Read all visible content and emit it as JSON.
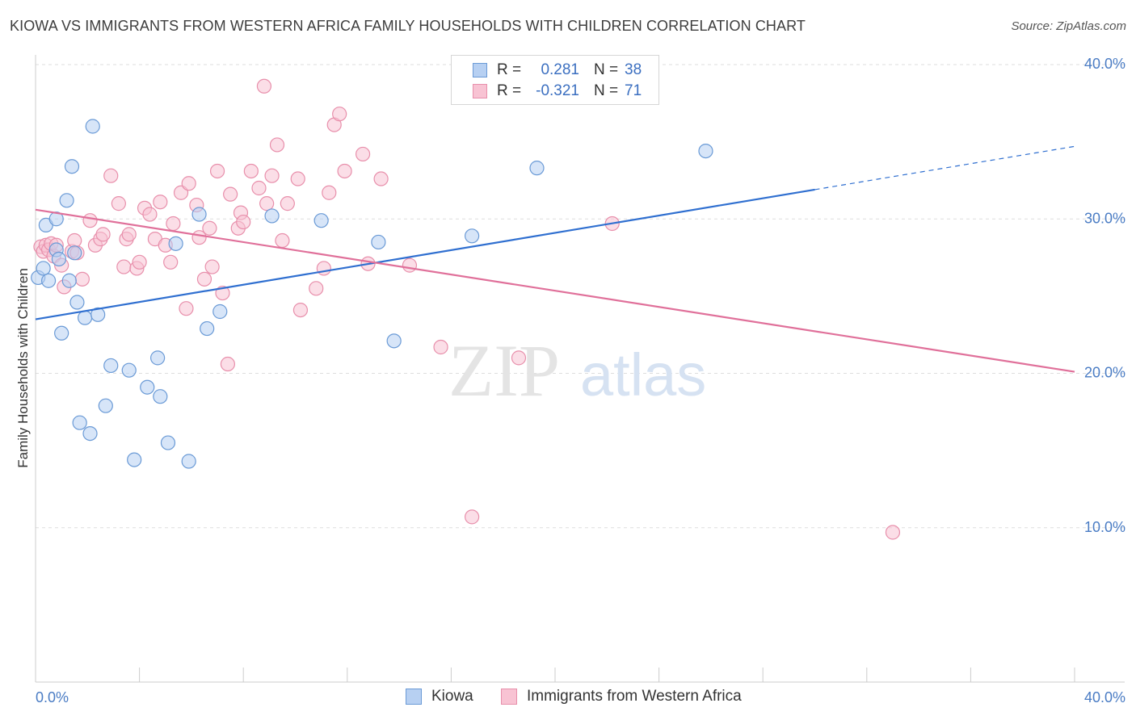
{
  "header": {
    "title": "KIOWA VS IMMIGRANTS FROM WESTERN AFRICA FAMILY HOUSEHOLDS WITH CHILDREN CORRELATION CHART",
    "source": "Source: ZipAtlas.com"
  },
  "watermark": {
    "zip": "ZIP",
    "atlas": "atlas"
  },
  "legend": {
    "rows": [
      {
        "r_key": "R =",
        "r_value": "0.281",
        "n_key": "N =",
        "n_value": "38"
      },
      {
        "r_key": "R =",
        "r_value": "-0.321",
        "n_key": "N =",
        "n_value": "71"
      }
    ]
  },
  "bottom_legend": {
    "items": [
      "Kiowa",
      "Immigrants from Western Africa"
    ]
  },
  "colors": {
    "kiowa_fill": "#b7d0f2",
    "kiowa_stroke": "#6a9ad6",
    "kiowa_line": "#2f6fd0",
    "waf_fill": "#f8c3d3",
    "waf_stroke": "#e88fab",
    "waf_line": "#e0709a",
    "tick": "#4a7cc4",
    "grid": "#dddddd"
  },
  "chart_data": {
    "type": "scatter",
    "title": "KIOWA VS IMMIGRANTS FROM WESTERN AFRICA FAMILY HOUSEHOLDS WITH CHILDREN CORRELATION CHART",
    "xlabel": "",
    "ylabel": "Family Households with Children",
    "xlim": [
      0,
      40
    ],
    "ylim": [
      0,
      40
    ],
    "x_tick_labels": [
      "0.0%",
      "40.0%"
    ],
    "y_ticks": [
      10,
      20,
      30,
      40
    ],
    "y_tick_labels": [
      "10.0%",
      "20.0%",
      "30.0%",
      "40.0%"
    ],
    "grid": true,
    "legend_position": "top-center",
    "series": [
      {
        "name": "Kiowa",
        "r": 0.281,
        "n": 38,
        "trend": {
          "x0": 0,
          "y0": 23.5,
          "x1": 30,
          "y1": 31.9,
          "dashed_to_x": 40,
          "dashed_to_y": 34.7
        },
        "points": [
          [
            0.1,
            26.2
          ],
          [
            0.3,
            26.8
          ],
          [
            0.4,
            29.6
          ],
          [
            0.5,
            26.0
          ],
          [
            0.8,
            28.0
          ],
          [
            0.8,
            30.0
          ],
          [
            0.9,
            27.4
          ],
          [
            1.0,
            22.6
          ],
          [
            1.2,
            31.2
          ],
          [
            1.3,
            26.0
          ],
          [
            1.4,
            33.4
          ],
          [
            1.5,
            27.8
          ],
          [
            1.6,
            24.6
          ],
          [
            1.7,
            16.8
          ],
          [
            1.9,
            23.6
          ],
          [
            2.1,
            16.1
          ],
          [
            2.2,
            36.0
          ],
          [
            2.4,
            23.8
          ],
          [
            2.7,
            17.9
          ],
          [
            2.9,
            20.5
          ],
          [
            3.6,
            20.2
          ],
          [
            3.8,
            14.4
          ],
          [
            4.3,
            19.1
          ],
          [
            4.7,
            21.0
          ],
          [
            4.8,
            18.5
          ],
          [
            5.1,
            15.5
          ],
          [
            5.4,
            28.4
          ],
          [
            5.9,
            14.3
          ],
          [
            6.3,
            30.3
          ],
          [
            6.6,
            22.9
          ],
          [
            7.1,
            24.0
          ],
          [
            9.1,
            30.2
          ],
          [
            11.0,
            29.9
          ],
          [
            13.2,
            28.5
          ],
          [
            13.8,
            22.1
          ],
          [
            16.8,
            28.9
          ],
          [
            19.3,
            33.3
          ],
          [
            25.8,
            34.4
          ]
        ]
      },
      {
        "name": "Immigrants from Western Africa",
        "r": -0.321,
        "n": 71,
        "trend": {
          "x0": 0,
          "y0": 30.6,
          "x1": 40,
          "y1": 20.1
        },
        "points": [
          [
            0.2,
            28.2
          ],
          [
            0.3,
            27.9
          ],
          [
            0.4,
            28.3
          ],
          [
            0.5,
            28.0
          ],
          [
            0.6,
            28.4
          ],
          [
            0.7,
            27.6
          ],
          [
            0.8,
            28.3
          ],
          [
            1.0,
            27.0
          ],
          [
            1.1,
            25.6
          ],
          [
            1.4,
            27.9
          ],
          [
            1.5,
            28.6
          ],
          [
            1.6,
            27.8
          ],
          [
            1.8,
            26.1
          ],
          [
            2.1,
            29.9
          ],
          [
            2.3,
            28.3
          ],
          [
            2.5,
            28.7
          ],
          [
            2.6,
            29.0
          ],
          [
            2.9,
            32.8
          ],
          [
            3.2,
            31.0
          ],
          [
            3.4,
            26.9
          ],
          [
            3.5,
            28.7
          ],
          [
            3.6,
            29.0
          ],
          [
            3.9,
            26.8
          ],
          [
            4.0,
            27.2
          ],
          [
            4.2,
            30.7
          ],
          [
            4.4,
            30.3
          ],
          [
            4.6,
            28.7
          ],
          [
            4.8,
            31.1
          ],
          [
            5.0,
            28.3
          ],
          [
            5.2,
            27.2
          ],
          [
            5.3,
            29.7
          ],
          [
            5.6,
            31.7
          ],
          [
            5.8,
            24.2
          ],
          [
            5.9,
            32.3
          ],
          [
            6.2,
            30.9
          ],
          [
            6.3,
            28.8
          ],
          [
            6.5,
            26.1
          ],
          [
            6.7,
            29.4
          ],
          [
            6.8,
            26.9
          ],
          [
            7.0,
            33.1
          ],
          [
            7.2,
            25.2
          ],
          [
            7.4,
            20.6
          ],
          [
            7.5,
            31.6
          ],
          [
            7.8,
            29.4
          ],
          [
            7.9,
            30.4
          ],
          [
            8.0,
            29.8
          ],
          [
            8.3,
            33.1
          ],
          [
            8.6,
            32.0
          ],
          [
            8.9,
            31.0
          ],
          [
            9.1,
            32.8
          ],
          [
            9.3,
            34.8
          ],
          [
            9.5,
            28.6
          ],
          [
            9.7,
            31.0
          ],
          [
            10.1,
            32.6
          ],
          [
            10.2,
            24.1
          ],
          [
            10.8,
            25.5
          ],
          [
            11.1,
            26.8
          ],
          [
            11.3,
            31.7
          ],
          [
            11.5,
            36.1
          ],
          [
            11.7,
            36.8
          ],
          [
            11.9,
            33.1
          ],
          [
            12.6,
            34.2
          ],
          [
            12.8,
            27.1
          ],
          [
            13.3,
            32.6
          ],
          [
            14.4,
            27.0
          ],
          [
            15.6,
            21.7
          ],
          [
            16.8,
            10.7
          ],
          [
            18.6,
            21.0
          ],
          [
            22.2,
            29.7
          ],
          [
            33.0,
            9.7
          ],
          [
            8.8,
            38.6
          ]
        ]
      }
    ]
  }
}
